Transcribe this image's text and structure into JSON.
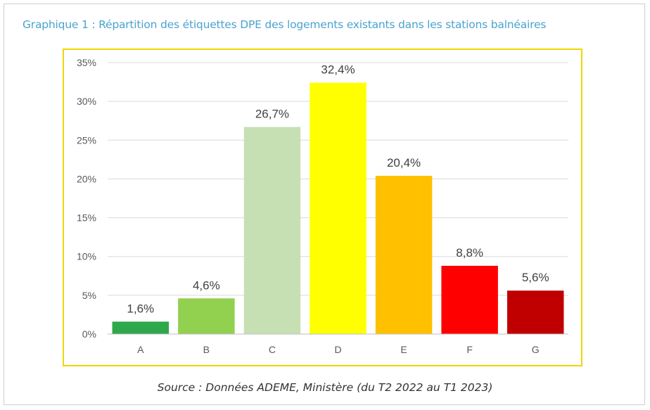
{
  "title": "Graphique 1 : Répartition des étiquettes DPE des logements existants dans les stations balnéaires",
  "source": "Source : Données ADEME, Ministère (du T2 2022 au T1 2023)",
  "chart_data": {
    "type": "bar",
    "categories": [
      "A",
      "B",
      "C",
      "D",
      "E",
      "F",
      "G"
    ],
    "values": [
      1.6,
      4.6,
      26.7,
      32.4,
      20.4,
      8.8,
      5.6
    ],
    "value_labels": [
      "1,6%",
      "4,6%",
      "26,7%",
      "32,4%",
      "20,4%",
      "8,8%",
      "5,6%"
    ],
    "colors": [
      "#2ea84b",
      "#92d050",
      "#c6e0b4",
      "#ffff00",
      "#ffc000",
      "#ff0000",
      "#c00000"
    ],
    "ylim": [
      0,
      35
    ],
    "yticks": [
      0,
      5,
      10,
      15,
      20,
      25,
      30,
      35
    ],
    "ytick_labels": [
      "0%",
      "5%",
      "10%",
      "15%",
      "20%",
      "25%",
      "30%",
      "35%"
    ],
    "grid": true,
    "border_color": "#f2d600"
  }
}
